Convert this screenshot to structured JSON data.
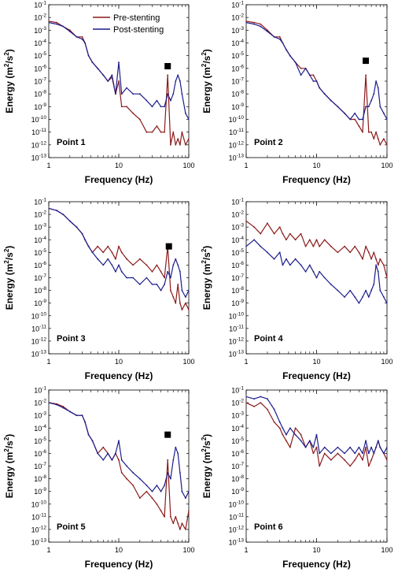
{
  "legend": {
    "entries": [
      {
        "label": "Pre-stenting",
        "color": "#8b1a1a"
      },
      {
        "label": "Post-stenting",
        "color": "#1c1c8c"
      }
    ]
  },
  "colors": {
    "pre": "#8b1a1a",
    "post": "#1c1c8c",
    "marker": "#000000"
  },
  "chart_data": [
    {
      "type": "line",
      "title": "Point 1",
      "xlabel": "Frequency (Hz)",
      "ylabel": "Energy (m²/s²)",
      "xscale": "log",
      "yscale": "log",
      "xlim": [
        1,
        100
      ],
      "ylim": [
        1e-13,
        0.1
      ],
      "xticks": [
        "1",
        "10",
        "100"
      ],
      "yticks": [
        "10-1",
        "10-2",
        "10-3",
        "10-4",
        "10-5",
        "10-6",
        "10-7",
        "10-8",
        "10-9",
        "10-10",
        "10-11",
        "10-12",
        "10-13"
      ],
      "legend_position": "top-right",
      "marker": {
        "type": "square",
        "x": 50,
        "y": 1.5e-06
      },
      "series": [
        {
          "name": "Pre-stenting",
          "x": [
            1,
            1.3,
            1.6,
            2,
            2.5,
            3,
            3.3,
            3.7,
            4.2,
            5,
            6,
            7,
            8,
            9,
            10,
            11,
            13,
            16,
            20,
            25,
            30,
            35,
            40,
            45,
            50,
            55,
            60,
            65,
            70,
            75,
            80,
            90,
            100
          ],
          "y": [
            0.005,
            0.004,
            0.002,
            0.001,
            0.0003,
            0.0003,
            0.0001,
            1e-05,
            3e-06,
            1e-06,
            3e-07,
            1e-07,
            2e-07,
            1e-08,
            1e-07,
            1e-09,
            1e-09,
            3e-10,
            1e-10,
            1e-11,
            1e-11,
            3e-11,
            1e-11,
            1e-11,
            3e-07,
            1e-12,
            1e-11,
            1e-12,
            3e-12,
            1e-12,
            1e-11,
            1e-12,
            3e-12
          ]
        },
        {
          "name": "Post-stenting",
          "x": [
            1,
            1.3,
            1.6,
            2,
            2.5,
            3,
            3.3,
            3.7,
            4.2,
            5,
            6,
            7,
            8,
            9,
            10,
            11,
            13,
            16,
            20,
            25,
            30,
            35,
            40,
            45,
            50,
            55,
            60,
            65,
            70,
            75,
            80,
            90,
            100
          ],
          "y": [
            0.004,
            0.003,
            0.002,
            0.0008,
            0.0003,
            0.0002,
            0.0001,
            1e-05,
            3e-06,
            1e-06,
            3e-07,
            1e-07,
            3e-07,
            1e-08,
            3e-06,
            1e-08,
            3e-08,
            1e-08,
            1e-08,
            3e-09,
            1e-09,
            3e-09,
            1e-09,
            1e-09,
            1e-08,
            3e-09,
            1e-08,
            1e-07,
            3e-07,
            1e-07,
            1e-08,
            3e-10,
            1e-10
          ]
        }
      ]
    },
    {
      "type": "line",
      "title": "Point 2",
      "xlabel": "Frequency (Hz)",
      "ylabel": "Energy (m²/s²)",
      "xscale": "log",
      "yscale": "log",
      "xlim": [
        1,
        100
      ],
      "ylim": [
        1e-13,
        0.1
      ],
      "xticks": [
        "1",
        "10",
        "100"
      ],
      "yticks": [
        "10-1",
        "10-2",
        "10-3",
        "10-4",
        "10-5",
        "10-6",
        "10-7",
        "10-8",
        "10-9",
        "10-10",
        "10-11",
        "10-12",
        "10-13"
      ],
      "marker": {
        "type": "square",
        "x": 50,
        "y": 4e-06
      },
      "series": [
        {
          "name": "Pre-stenting",
          "x": [
            1,
            1.3,
            1.6,
            2,
            2.5,
            3,
            3.3,
            3.7,
            4.2,
            5,
            6,
            7,
            8,
            9,
            10,
            11,
            13,
            16,
            20,
            25,
            30,
            35,
            40,
            45,
            50,
            55,
            60,
            65,
            70,
            75,
            80,
            90,
            100
          ],
          "y": [
            0.005,
            0.004,
            0.003,
            0.001,
            0.0003,
            0.0003,
            0.0001,
            3e-05,
            1e-05,
            3e-06,
            1e-06,
            1e-06,
            3e-07,
            3e-07,
            1e-07,
            3e-08,
            1e-08,
            3e-09,
            1e-09,
            3e-10,
            1e-10,
            1e-10,
            3e-11,
            1e-11,
            3e-07,
            1e-11,
            1e-11,
            3e-12,
            1e-11,
            3e-12,
            1e-12,
            3e-12,
            1e-12
          ]
        },
        {
          "name": "Post-stenting",
          "x": [
            1,
            1.3,
            1.6,
            2,
            2.5,
            3,
            3.3,
            3.7,
            4.2,
            5,
            6,
            7,
            8,
            9,
            10,
            11,
            13,
            16,
            20,
            25,
            30,
            35,
            40,
            45,
            50,
            55,
            60,
            65,
            70,
            75,
            80,
            90,
            100
          ],
          "y": [
            0.004,
            0.003,
            0.002,
            0.0008,
            0.0003,
            0.0002,
            0.0001,
            3e-05,
            1e-05,
            3e-06,
            3e-07,
            1e-06,
            3e-07,
            1e-07,
            1e-07,
            3e-08,
            1e-08,
            3e-09,
            1e-09,
            3e-10,
            1e-10,
            3e-10,
            1e-10,
            1e-10,
            1e-09,
            1e-09,
            3e-09,
            1e-08,
            1e-07,
            3e-08,
            1e-09,
            3e-10,
            1e-10
          ]
        }
      ]
    },
    {
      "type": "line",
      "title": "Point 3",
      "xlabel": "Frequency (Hz)",
      "ylabel": "Energy (m²/s²)",
      "xscale": "log",
      "yscale": "log",
      "xlim": [
        1,
        100
      ],
      "ylim": [
        1e-13,
        0.1
      ],
      "xticks": [
        "1",
        "10",
        "100"
      ],
      "yticks": [
        "10-1",
        "10-2",
        "10-3",
        "10-4",
        "10-5",
        "10-6",
        "10-7",
        "10-8",
        "10-9",
        "10-10",
        "10-11",
        "10-12",
        "10-13"
      ],
      "marker": {
        "type": "square",
        "x": 52,
        "y": 3e-05
      },
      "series": [
        {
          "name": "Pre-stenting",
          "x": [
            1,
            1.3,
            1.6,
            2,
            2.5,
            3,
            3.3,
            3.7,
            4.2,
            5,
            6,
            7,
            8,
            9,
            10,
            11,
            13,
            16,
            20,
            25,
            30,
            35,
            40,
            45,
            50,
            55,
            60,
            65,
            70,
            75,
            80,
            90,
            100
          ],
          "y": [
            0.03,
            0.02,
            0.01,
            0.003,
            0.001,
            0.0003,
            0.0001,
            3e-05,
            1e-05,
            3e-05,
            1e-05,
            3e-05,
            1e-05,
            3e-06,
            3e-05,
            1e-05,
            3e-06,
            1e-06,
            3e-06,
            1e-06,
            3e-07,
            1e-06,
            3e-07,
            1e-07,
            3e-05,
            1e-08,
            3e-09,
            1e-09,
            3e-08,
            1e-09,
            3e-10,
            1e-09,
            3e-10
          ]
        },
        {
          "name": "Post-stenting",
          "x": [
            1,
            1.3,
            1.6,
            2,
            2.5,
            3,
            3.3,
            3.7,
            4.2,
            5,
            6,
            7,
            8,
            9,
            10,
            11,
            13,
            16,
            20,
            25,
            30,
            35,
            40,
            45,
            50,
            55,
            60,
            65,
            70,
            75,
            80,
            90,
            100
          ],
          "y": [
            0.03,
            0.02,
            0.01,
            0.003,
            0.001,
            0.0003,
            0.0001,
            3e-05,
            1e-05,
            3e-06,
            1e-06,
            3e-06,
            1e-06,
            3e-07,
            1e-06,
            3e-07,
            1e-07,
            1e-07,
            3e-08,
            1e-07,
            3e-08,
            3e-08,
            1e-08,
            3e-08,
            3e-07,
            1e-07,
            1e-06,
            3e-06,
            1e-06,
            3e-07,
            1e-08,
            3e-09,
            1e-08
          ]
        }
      ]
    },
    {
      "type": "line",
      "title": "Point 4",
      "xlabel": "Frequency (Hz)",
      "ylabel": "Energy (m²/s²)",
      "xscale": "log",
      "yscale": "log",
      "xlim": [
        1,
        100
      ],
      "ylim": [
        1e-13,
        0.1
      ],
      "xticks": [
        "1",
        "10",
        "100"
      ],
      "yticks": [
        "10-1",
        "10-2",
        "10-3",
        "10-4",
        "10-5",
        "10-6",
        "10-7",
        "10-8",
        "10-9",
        "10-10",
        "10-11",
        "10-12",
        "10-13"
      ],
      "series": [
        {
          "name": "Pre-stenting",
          "x": [
            1,
            1.3,
            1.6,
            2,
            2.5,
            3,
            3.3,
            3.7,
            4.2,
            5,
            6,
            7,
            8,
            9,
            10,
            11,
            13,
            16,
            20,
            25,
            30,
            35,
            40,
            45,
            50,
            55,
            60,
            65,
            70,
            75,
            80,
            90,
            100
          ],
          "y": [
            0.003,
            0.001,
            0.0003,
            0.002,
            0.0003,
            0.001,
            0.0003,
            0.0001,
            0.0003,
            0.0001,
            0.0003,
            3e-05,
            0.0001,
            3e-05,
            0.0001,
            3e-05,
            0.0001,
            3e-05,
            1e-05,
            3e-05,
            1e-05,
            3e-05,
            1e-05,
            3e-06,
            3e-05,
            1e-05,
            3e-06,
            1e-05,
            3e-06,
            1e-06,
            3e-06,
            1e-06,
            1e-07
          ]
        },
        {
          "name": "Post-stenting",
          "x": [
            1,
            1.3,
            1.6,
            2,
            2.5,
            3,
            3.3,
            3.7,
            4.2,
            5,
            6,
            7,
            8,
            9,
            10,
            11,
            13,
            16,
            20,
            25,
            30,
            35,
            40,
            45,
            50,
            55,
            60,
            65,
            70,
            75,
            80,
            90,
            100
          ],
          "y": [
            3e-05,
            0.0001,
            3e-05,
            1e-05,
            3e-06,
            1e-05,
            1e-06,
            3e-06,
            1e-06,
            3e-06,
            1e-06,
            3e-07,
            1e-06,
            3e-07,
            1e-07,
            3e-07,
            1e-07,
            3e-08,
            1e-08,
            3e-09,
            1e-08,
            3e-09,
            1e-09,
            3e-09,
            1e-08,
            3e-09,
            1e-08,
            3e-08,
            1e-06,
            3e-07,
            1e-08,
            3e-09,
            1e-09
          ]
        }
      ]
    },
    {
      "type": "line",
      "title": "Point 5",
      "xlabel": "Frequency (Hz)",
      "ylabel": "Energy (m²/s²)",
      "xscale": "log",
      "yscale": "log",
      "xlim": [
        1,
        100
      ],
      "ylim": [
        1e-13,
        0.1
      ],
      "xticks": [
        "1",
        "10",
        "100"
      ],
      "yticks": [
        "10-1",
        "10-2",
        "10-3",
        "10-4",
        "10-5",
        "10-6",
        "10-7",
        "10-8",
        "10-9",
        "10-10",
        "10-11",
        "10-12",
        "10-13"
      ],
      "marker": {
        "type": "square",
        "x": 50,
        "y": 3e-05
      },
      "series": [
        {
          "name": "Pre-stenting",
          "x": [
            1,
            1.3,
            1.6,
            2,
            2.5,
            3,
            3.3,
            3.7,
            4.2,
            5,
            6,
            7,
            8,
            9,
            10,
            11,
            13,
            16,
            20,
            25,
            30,
            35,
            40,
            45,
            50,
            55,
            60,
            65,
            70,
            75,
            80,
            90,
            100
          ],
          "y": [
            0.01,
            0.008,
            0.005,
            0.002,
            0.001,
            0.001,
            0.0003,
            3e-05,
            1e-05,
            1e-06,
            3e-06,
            1e-06,
            3e-07,
            1e-06,
            3e-07,
            3e-08,
            1e-08,
            3e-09,
            3e-10,
            1e-09,
            3e-10,
            1e-10,
            3e-11,
            1e-11,
            3e-07,
            1e-11,
            3e-12,
            1e-11,
            3e-12,
            1e-12,
            3e-12,
            1e-12,
            3e-11
          ]
        },
        {
          "name": "Post-stenting",
          "x": [
            1,
            1.3,
            1.6,
            2,
            2.5,
            3,
            3.3,
            3.7,
            4.2,
            5,
            6,
            7,
            8,
            9,
            10,
            11,
            13,
            16,
            20,
            25,
            30,
            35,
            40,
            45,
            50,
            55,
            60,
            65,
            70,
            75,
            80,
            90,
            100
          ],
          "y": [
            0.01,
            0.007,
            0.004,
            0.002,
            0.001,
            0.001,
            0.0003,
            3e-05,
            1e-05,
            1e-06,
            3e-07,
            1e-06,
            3e-07,
            1e-06,
            1e-05,
            3e-07,
            1e-07,
            3e-08,
            1e-08,
            3e-09,
            1e-09,
            3e-09,
            1e-09,
            3e-09,
            3e-08,
            1e-08,
            3e-07,
            3e-06,
            1e-06,
            3e-08,
            1e-09,
            3e-10,
            1e-09
          ]
        }
      ]
    },
    {
      "type": "line",
      "title": "Point 6",
      "xlabel": "Frequency (Hz)",
      "ylabel": "Energy (m²/s²)",
      "xscale": "log",
      "yscale": "log",
      "xlim": [
        1,
        100
      ],
      "ylim": [
        1e-13,
        0.1
      ],
      "xticks": [
        "1",
        "10",
        "100"
      ],
      "yticks": [
        "10-1",
        "10-2",
        "10-3",
        "10-4",
        "10-5",
        "10-6",
        "10-7",
        "10-8",
        "10-9",
        "10-10",
        "10-11",
        "10-12",
        "10-13"
      ],
      "series": [
        {
          "name": "Pre-stenting",
          "x": [
            1,
            1.3,
            1.6,
            2,
            2.5,
            3,
            3.3,
            3.7,
            4.2,
            5,
            6,
            7,
            8,
            9,
            10,
            11,
            13,
            16,
            20,
            25,
            30,
            35,
            40,
            45,
            50,
            55,
            60,
            65,
            70,
            75,
            80,
            90,
            100
          ],
          "y": [
            0.01,
            0.005,
            0.01,
            0.003,
            0.0003,
            0.0001,
            3e-05,
            1e-05,
            3e-06,
            0.0001,
            3e-05,
            3e-06,
            1e-05,
            1e-06,
            3e-06,
            1e-07,
            1e-06,
            3e-07,
            1e-06,
            3e-07,
            1e-07,
            3e-07,
            1e-06,
            3e-07,
            3e-06,
            1e-07,
            3e-07,
            1e-06,
            3e-06,
            1e-05,
            3e-06,
            1e-06,
            3e-07
          ]
        },
        {
          "name": "Post-stenting",
          "x": [
            1,
            1.3,
            1.6,
            2,
            2.5,
            3,
            3.3,
            3.7,
            4.2,
            5,
            6,
            7,
            8,
            9,
            10,
            11,
            13,
            16,
            20,
            25,
            30,
            35,
            40,
            45,
            50,
            55,
            60,
            65,
            70,
            75,
            80,
            90,
            100
          ],
          "y": [
            0.03,
            0.02,
            0.03,
            0.02,
            0.003,
            0.0003,
            0.0001,
            3e-05,
            0.0001,
            3e-05,
            1e-05,
            3e-06,
            1e-05,
            3e-06,
            3e-05,
            1e-06,
            3e-06,
            1e-06,
            3e-06,
            1e-06,
            3e-06,
            1e-06,
            3e-06,
            1e-06,
            1e-05,
            1e-06,
            3e-06,
            1e-06,
            3e-06,
            1e-05,
            3e-06,
            1e-06,
            3e-06
          ]
        }
      ]
    }
  ]
}
